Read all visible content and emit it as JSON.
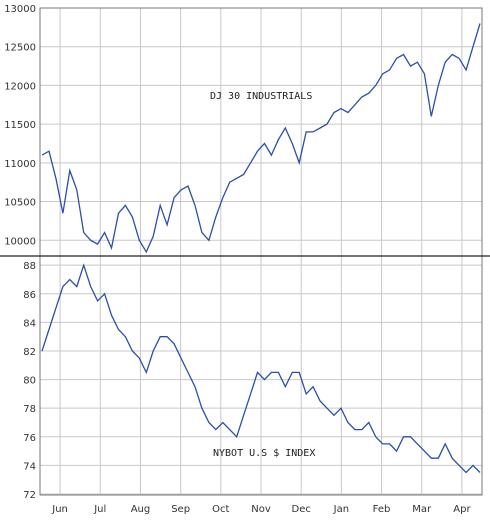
{
  "chart_data": [
    {
      "type": "line",
      "title": "DJ 30 INDUSTRIALS",
      "ylim": [
        9900,
        13000
      ],
      "yticks": [
        10000,
        10500,
        11000,
        11500,
        12000,
        12500,
        13000
      ],
      "grid": true,
      "color": "#2b4fa8",
      "x": [
        0,
        1,
        2,
        3,
        4,
        5,
        6,
        7,
        8,
        9,
        10,
        11,
        12,
        13,
        14,
        15,
        16,
        17,
        18,
        19,
        20,
        21,
        22,
        23,
        24,
        25,
        26,
        27,
        28,
        29,
        30,
        31,
        32,
        33,
        34,
        35,
        36,
        37,
        38,
        39,
        40,
        41,
        42,
        43,
        44,
        45,
        46,
        47,
        48,
        49,
        50,
        51,
        52,
        53,
        54,
        55,
        56,
        57,
        58,
        59,
        60,
        61,
        62,
        63
      ],
      "values": [
        11100,
        11150,
        10800,
        10350,
        10900,
        10650,
        10100,
        10000,
        9950,
        10100,
        9900,
        10350,
        10450,
        10300,
        10000,
        9850,
        10050,
        10450,
        10200,
        10550,
        10650,
        10700,
        10450,
        10100,
        10000,
        10300,
        10550,
        10750,
        10800,
        10850,
        11000,
        11150,
        11250,
        11100,
        11300,
        11450,
        11250,
        11000,
        11400,
        11400,
        11450,
        11500,
        11650,
        11700,
        11650,
        11750,
        11850,
        11900,
        12000,
        12150,
        12200,
        12350,
        12400,
        12250,
        12300,
        12150,
        11600,
        12000,
        12300,
        12400,
        12350,
        12200,
        12500,
        12800
      ]
    },
    {
      "type": "line",
      "title": "NYBOT U.S $ INDEX",
      "ylim": [
        72,
        88.5
      ],
      "yticks": [
        72,
        74,
        76,
        78,
        80,
        82,
        84,
        86,
        88
      ],
      "grid": true,
      "color": "#2b4fa8",
      "x": [
        0,
        1,
        2,
        3,
        4,
        5,
        6,
        7,
        8,
        9,
        10,
        11,
        12,
        13,
        14,
        15,
        16,
        17,
        18,
        19,
        20,
        21,
        22,
        23,
        24,
        25,
        26,
        27,
        28,
        29,
        30,
        31,
        32,
        33,
        34,
        35,
        36,
        37,
        38,
        39,
        40,
        41,
        42,
        43,
        44,
        45,
        46,
        47,
        48,
        49,
        50,
        51,
        52,
        53,
        54,
        55,
        56,
        57,
        58,
        59,
        60,
        61,
        62,
        63
      ],
      "values": [
        82,
        83.5,
        85,
        86.5,
        87,
        86.5,
        88,
        86.5,
        85.5,
        86,
        84.5,
        83.5,
        83,
        82,
        81.5,
        80.5,
        82,
        83,
        83,
        82.5,
        81.5,
        80.5,
        79.5,
        78,
        77,
        76.5,
        77,
        76.5,
        76,
        77.5,
        79,
        80.5,
        80,
        80.5,
        80.5,
        79.5,
        80.5,
        80.5,
        79,
        79.5,
        78.5,
        78,
        77.5,
        78,
        77,
        76.5,
        76.5,
        77,
        76,
        75.5,
        75.5,
        75,
        76,
        76,
        75.5,
        75,
        74.5,
        74.5,
        75.5,
        74.5,
        74,
        73.5,
        74,
        73.5
      ]
    }
  ],
  "months": [
    "Jun",
    "Jul",
    "Aug",
    "Sep",
    "Oct",
    "Nov",
    "Dec",
    "Jan",
    "Feb",
    "Mar",
    "Apr"
  ]
}
